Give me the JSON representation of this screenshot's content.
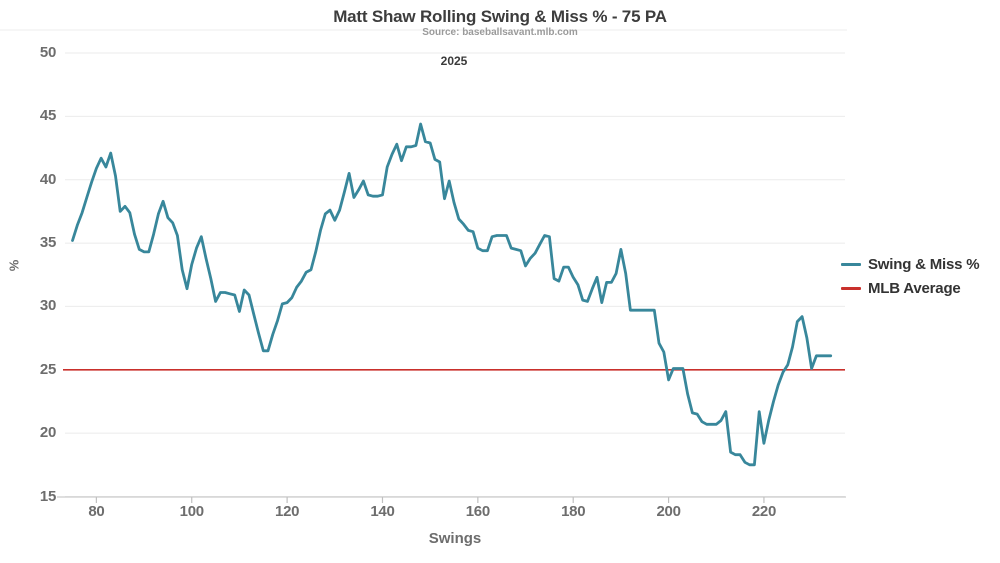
{
  "title": "Matt Shaw Rolling Swing & Miss % - 75 PA",
  "subtitle": "Source: baseballsavant.mlb.com",
  "facet_label": "2025",
  "colors": {
    "line": "#38879b",
    "mlb_average": "#c9302c",
    "grid": "#ebebeb",
    "axis": "#cccccc",
    "tick_text": "#6d6d6d"
  },
  "chart_data": {
    "type": "line",
    "title": "Matt Shaw Rolling Swing & Miss % - 75 PA",
    "subtitle": "Source: baseballsavant.mlb.com",
    "facet": "2025",
    "xlabel": "Swings",
    "ylabel": "%",
    "xlim": [
      73,
      237
    ],
    "ylim": [
      15,
      50
    ],
    "xticks": [
      80,
      100,
      120,
      140,
      160,
      180,
      200,
      220
    ],
    "yticks": [
      15,
      20,
      25,
      30,
      35,
      40,
      45,
      50
    ],
    "grid": "horizontal",
    "legend_position": "right",
    "series": [
      {
        "name": "Swing & Miss %",
        "color": "#38879b",
        "points": [
          [
            75,
            35.2
          ],
          [
            76,
            36.4
          ],
          [
            77,
            37.4
          ],
          [
            78,
            38.6
          ],
          [
            79,
            39.8
          ],
          [
            80,
            40.9
          ],
          [
            81,
            41.7
          ],
          [
            82,
            41.0
          ],
          [
            83,
            42.1
          ],
          [
            84,
            40.3
          ],
          [
            85,
            37.5
          ],
          [
            86,
            37.9
          ],
          [
            87,
            37.4
          ],
          [
            88,
            35.7
          ],
          [
            89,
            34.5
          ],
          [
            90,
            34.3
          ],
          [
            91,
            34.3
          ],
          [
            92,
            35.7
          ],
          [
            93,
            37.3
          ],
          [
            94,
            38.3
          ],
          [
            95,
            37.0
          ],
          [
            96,
            36.6
          ],
          [
            97,
            35.6
          ],
          [
            98,
            32.9
          ],
          [
            99,
            31.4
          ],
          [
            100,
            33.3
          ],
          [
            101,
            34.6
          ],
          [
            102,
            35.5
          ],
          [
            103,
            33.8
          ],
          [
            104,
            32.2
          ],
          [
            105,
            30.4
          ],
          [
            106,
            31.1
          ],
          [
            107,
            31.1
          ],
          [
            108,
            31.0
          ],
          [
            109,
            30.9
          ],
          [
            110,
            29.6
          ],
          [
            111,
            31.3
          ],
          [
            112,
            30.9
          ],
          [
            113,
            29.4
          ],
          [
            114,
            27.9
          ],
          [
            115,
            26.5
          ],
          [
            116,
            26.5
          ],
          [
            117,
            27.8
          ],
          [
            118,
            28.9
          ],
          [
            119,
            30.2
          ],
          [
            120,
            30.3
          ],
          [
            121,
            30.7
          ],
          [
            122,
            31.5
          ],
          [
            123,
            32.0
          ],
          [
            124,
            32.7
          ],
          [
            125,
            32.9
          ],
          [
            126,
            34.3
          ],
          [
            127,
            36.0
          ],
          [
            128,
            37.3
          ],
          [
            129,
            37.6
          ],
          [
            130,
            36.8
          ],
          [
            131,
            37.6
          ],
          [
            132,
            39.0
          ],
          [
            133,
            40.5
          ],
          [
            134,
            38.6
          ],
          [
            135,
            39.2
          ],
          [
            136,
            39.9
          ],
          [
            137,
            38.8
          ],
          [
            138,
            38.7
          ],
          [
            139,
            38.7
          ],
          [
            140,
            38.8
          ],
          [
            141,
            41.0
          ],
          [
            142,
            42.0
          ],
          [
            143,
            42.8
          ],
          [
            144,
            41.5
          ],
          [
            145,
            42.6
          ],
          [
            146,
            42.6
          ],
          [
            147,
            42.7
          ],
          [
            148,
            44.4
          ],
          [
            149,
            43.0
          ],
          [
            150,
            42.9
          ],
          [
            151,
            41.6
          ],
          [
            152,
            41.4
          ],
          [
            153,
            38.5
          ],
          [
            154,
            39.9
          ],
          [
            155,
            38.2
          ],
          [
            156,
            36.9
          ],
          [
            157,
            36.5
          ],
          [
            158,
            36.0
          ],
          [
            159,
            35.9
          ],
          [
            160,
            34.6
          ],
          [
            161,
            34.4
          ],
          [
            162,
            34.4
          ],
          [
            163,
            35.5
          ],
          [
            164,
            35.6
          ],
          [
            165,
            35.6
          ],
          [
            166,
            35.6
          ],
          [
            167,
            34.6
          ],
          [
            168,
            34.5
          ],
          [
            169,
            34.4
          ],
          [
            170,
            33.2
          ],
          [
            171,
            33.8
          ],
          [
            172,
            34.2
          ],
          [
            173,
            34.9
          ],
          [
            174,
            35.6
          ],
          [
            175,
            35.5
          ],
          [
            176,
            32.2
          ],
          [
            177,
            32.0
          ],
          [
            178,
            33.1
          ],
          [
            179,
            33.1
          ],
          [
            180,
            32.3
          ],
          [
            181,
            31.7
          ],
          [
            182,
            30.5
          ],
          [
            183,
            30.4
          ],
          [
            184,
            31.4
          ],
          [
            185,
            32.3
          ],
          [
            186,
            30.3
          ],
          [
            187,
            31.9
          ],
          [
            188,
            31.9
          ],
          [
            189,
            32.6
          ],
          [
            190,
            34.5
          ],
          [
            191,
            32.6
          ],
          [
            192,
            29.7
          ],
          [
            193,
            29.7
          ],
          [
            194,
            29.7
          ],
          [
            195,
            29.7
          ],
          [
            196,
            29.7
          ],
          [
            197,
            29.7
          ],
          [
            198,
            27.1
          ],
          [
            199,
            26.4
          ],
          [
            200,
            24.2
          ],
          [
            201,
            25.1
          ],
          [
            202,
            25.1
          ],
          [
            203,
            25.1
          ],
          [
            204,
            23.1
          ],
          [
            205,
            21.6
          ],
          [
            206,
            21.5
          ],
          [
            207,
            20.9
          ],
          [
            208,
            20.7
          ],
          [
            209,
            20.7
          ],
          [
            210,
            20.7
          ],
          [
            211,
            21.0
          ],
          [
            212,
            21.7
          ],
          [
            213,
            18.5
          ],
          [
            214,
            18.3
          ],
          [
            215,
            18.3
          ],
          [
            216,
            17.7
          ],
          [
            217,
            17.5
          ],
          [
            218,
            17.5
          ],
          [
            219,
            21.7
          ],
          [
            220,
            19.2
          ],
          [
            221,
            21.0
          ],
          [
            222,
            22.5
          ],
          [
            223,
            23.8
          ],
          [
            224,
            24.8
          ],
          [
            225,
            25.4
          ],
          [
            226,
            26.8
          ],
          [
            227,
            28.8
          ],
          [
            228,
            29.2
          ],
          [
            229,
            27.5
          ],
          [
            230,
            25.1
          ],
          [
            231,
            26.1
          ],
          [
            232,
            26.1
          ],
          [
            233,
            26.1
          ],
          [
            234,
            26.1
          ]
        ]
      },
      {
        "name": "MLB Average",
        "color": "#c9302c",
        "value": 25
      }
    ]
  }
}
